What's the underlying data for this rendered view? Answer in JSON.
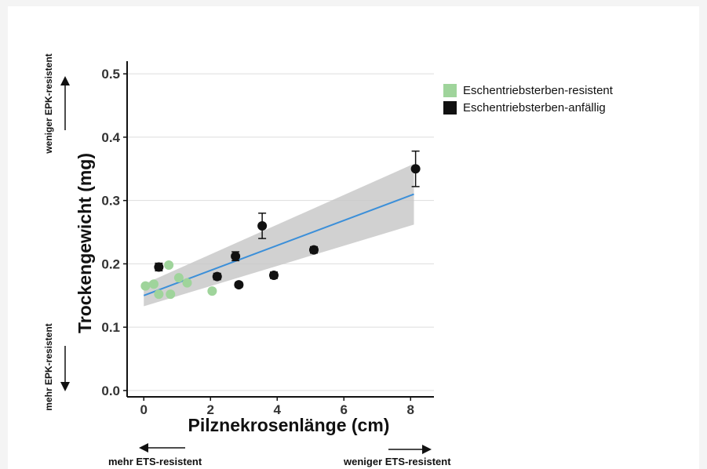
{
  "chart_data": {
    "type": "scatter",
    "xlabel": "Pilznekrosenlänge (cm)",
    "ylabel": "Trockengewicht (mg)",
    "xlim": [
      -0.5,
      8.7
    ],
    "ylim": [
      -0.01,
      0.52
    ],
    "x_ticks": [
      "0",
      "2",
      "4",
      "6",
      "8"
    ],
    "x_tick_values": [
      0,
      2,
      4,
      6,
      8
    ],
    "y_ticks": [
      "0.0",
      "0.1",
      "0.2",
      "0.3",
      "0.4",
      "0.5"
    ],
    "y_tick_values": [
      0.0,
      0.1,
      0.2,
      0.3,
      0.4,
      0.5
    ],
    "grid": "horizontal",
    "legend_position": "right",
    "series": [
      {
        "name": "Eschentriebsterben-resistent",
        "color": "#9fd49b",
        "points": [
          {
            "x": 0.05,
            "y": 0.165
          },
          {
            "x": 0.3,
            "y": 0.168
          },
          {
            "x": 0.45,
            "y": 0.152
          },
          {
            "x": 0.75,
            "y": 0.198
          },
          {
            "x": 0.8,
            "y": 0.152
          },
          {
            "x": 1.05,
            "y": 0.178
          },
          {
            "x": 1.3,
            "y": 0.17
          },
          {
            "x": 2.05,
            "y": 0.157
          }
        ]
      },
      {
        "name": "Eschentriebsterben-anfällig",
        "color": "#111111",
        "points": [
          {
            "x": 0.45,
            "y": 0.195,
            "err": 0.006
          },
          {
            "x": 2.2,
            "y": 0.18,
            "err": 0.005
          },
          {
            "x": 2.75,
            "y": 0.212,
            "err": 0.007
          },
          {
            "x": 2.85,
            "y": 0.167,
            "err": 0.004
          },
          {
            "x": 3.55,
            "y": 0.26,
            "err": 0.02
          },
          {
            "x": 3.9,
            "y": 0.182,
            "err": 0.005
          },
          {
            "x": 5.1,
            "y": 0.222,
            "err": 0.005
          },
          {
            "x": 8.15,
            "y": 0.35,
            "err": 0.028
          }
        ]
      }
    ],
    "trend_line": {
      "color": "#3b8fd9",
      "x": [
        0,
        8.1
      ],
      "y": [
        0.15,
        0.31
      ],
      "ci_lower": [
        0.133,
        0.262
      ],
      "ci_upper": [
        0.168,
        0.358
      ]
    },
    "annotations": {
      "x_left": "mehr ETS-resistent",
      "x_right": "weniger ETS-resistent",
      "y_top": "weniger EPK-resistent",
      "y_bottom": "mehr EPK-resistent"
    }
  }
}
